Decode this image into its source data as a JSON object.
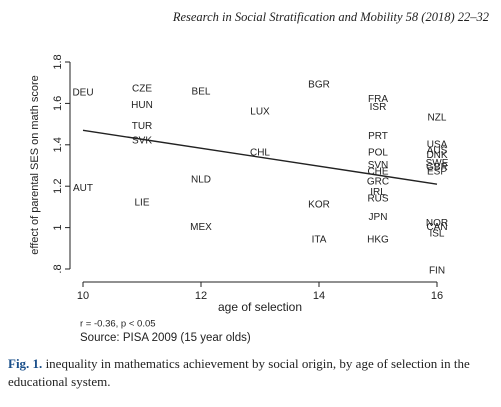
{
  "header": "Research in Social Stratification and Mobility 58 (2018) 22–32",
  "chart_data": {
    "type": "scatter",
    "ylabel": "effect of parental SES on math score",
    "xlabel": "age of selection",
    "labels": [
      "DEU",
      "AUT",
      "CZE",
      "HUN",
      "TUR",
      "SVK",
      "LIE",
      "BEL",
      "NLD",
      "MEX",
      "LUX",
      "CHL",
      "BGR",
      "KOR",
      "ITA",
      "FRA",
      "ISR",
      "PRT",
      "POL",
      "SVN",
      "CHE",
      "GRC",
      "IRL",
      "RUS",
      "JPN",
      "HKG",
      "NZL",
      "USA",
      "AUS",
      "DNK",
      "SWE",
      "GBR",
      "ESP",
      "NOR",
      "CAN",
      "ISL",
      "FIN"
    ],
    "x": [
      10,
      10,
      11,
      11,
      11,
      11,
      11,
      12,
      12,
      12,
      13,
      13,
      14,
      14,
      14,
      15,
      15,
      15,
      15,
      15,
      15,
      15,
      15,
      15,
      15,
      15,
      16,
      16,
      16,
      16,
      16,
      16,
      16,
      16,
      16,
      16,
      16
    ],
    "values": [
      1.65,
      1.19,
      1.67,
      1.59,
      1.49,
      1.42,
      1.12,
      1.655,
      1.23,
      1.0,
      1.56,
      1.36,
      1.69,
      1.11,
      0.94,
      1.62,
      1.58,
      1.44,
      1.36,
      1.3,
      1.27,
      1.22,
      1.17,
      1.14,
      1.05,
      0.94,
      1.53,
      1.4,
      1.37,
      1.35,
      1.31,
      1.29,
      1.27,
      1.02,
      1.0,
      0.97,
      0.79
    ],
    "fit_line": {
      "x": [
        10,
        16
      ],
      "y": [
        1.47,
        1.21
      ]
    },
    "xlim": [
      10,
      16
    ],
    "xticks": [
      10,
      12,
      14,
      16
    ],
    "ylim": [
      0.8,
      1.8
    ],
    "yticks": [
      {
        "value": 0.8,
        "label": ".8"
      },
      1,
      1.2,
      1.4,
      1.6,
      1.8
    ],
    "annotations": [
      "r = -0.36, p < 0.05",
      "Source: PISA 2009 (15 year olds)"
    ],
    "color": "#222222"
  },
  "caption": {
    "label": "Fig. 1.",
    "text": "inequality in mathematics achievement by social origin, by age of selection in the educational system."
  }
}
